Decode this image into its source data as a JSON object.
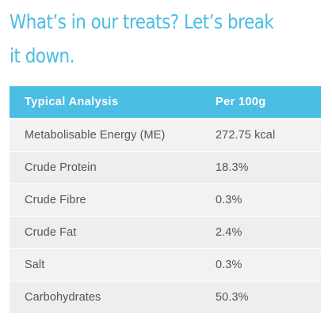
{
  "heading": "What’s in our treats? Let’s break it down.",
  "table": {
    "headers": [
      "Typical Analysis",
      "Per 100g"
    ],
    "rows": [
      {
        "name": "Metabolisable Energy (ME)",
        "value": "272.75 kcal"
      },
      {
        "name": "Crude Protein",
        "value": "18.3%"
      },
      {
        "name": "Crude Fibre",
        "value": "0.3%"
      },
      {
        "name": "Crude Fat",
        "value": "2.4%"
      },
      {
        "name": "Salt",
        "value": "0.3%"
      },
      {
        "name": "Carbohydrates",
        "value": "50.3%"
      }
    ]
  },
  "colors": {
    "accent": "#4cbde3",
    "row_background": "#f0f0f0",
    "text": "#555555"
  }
}
